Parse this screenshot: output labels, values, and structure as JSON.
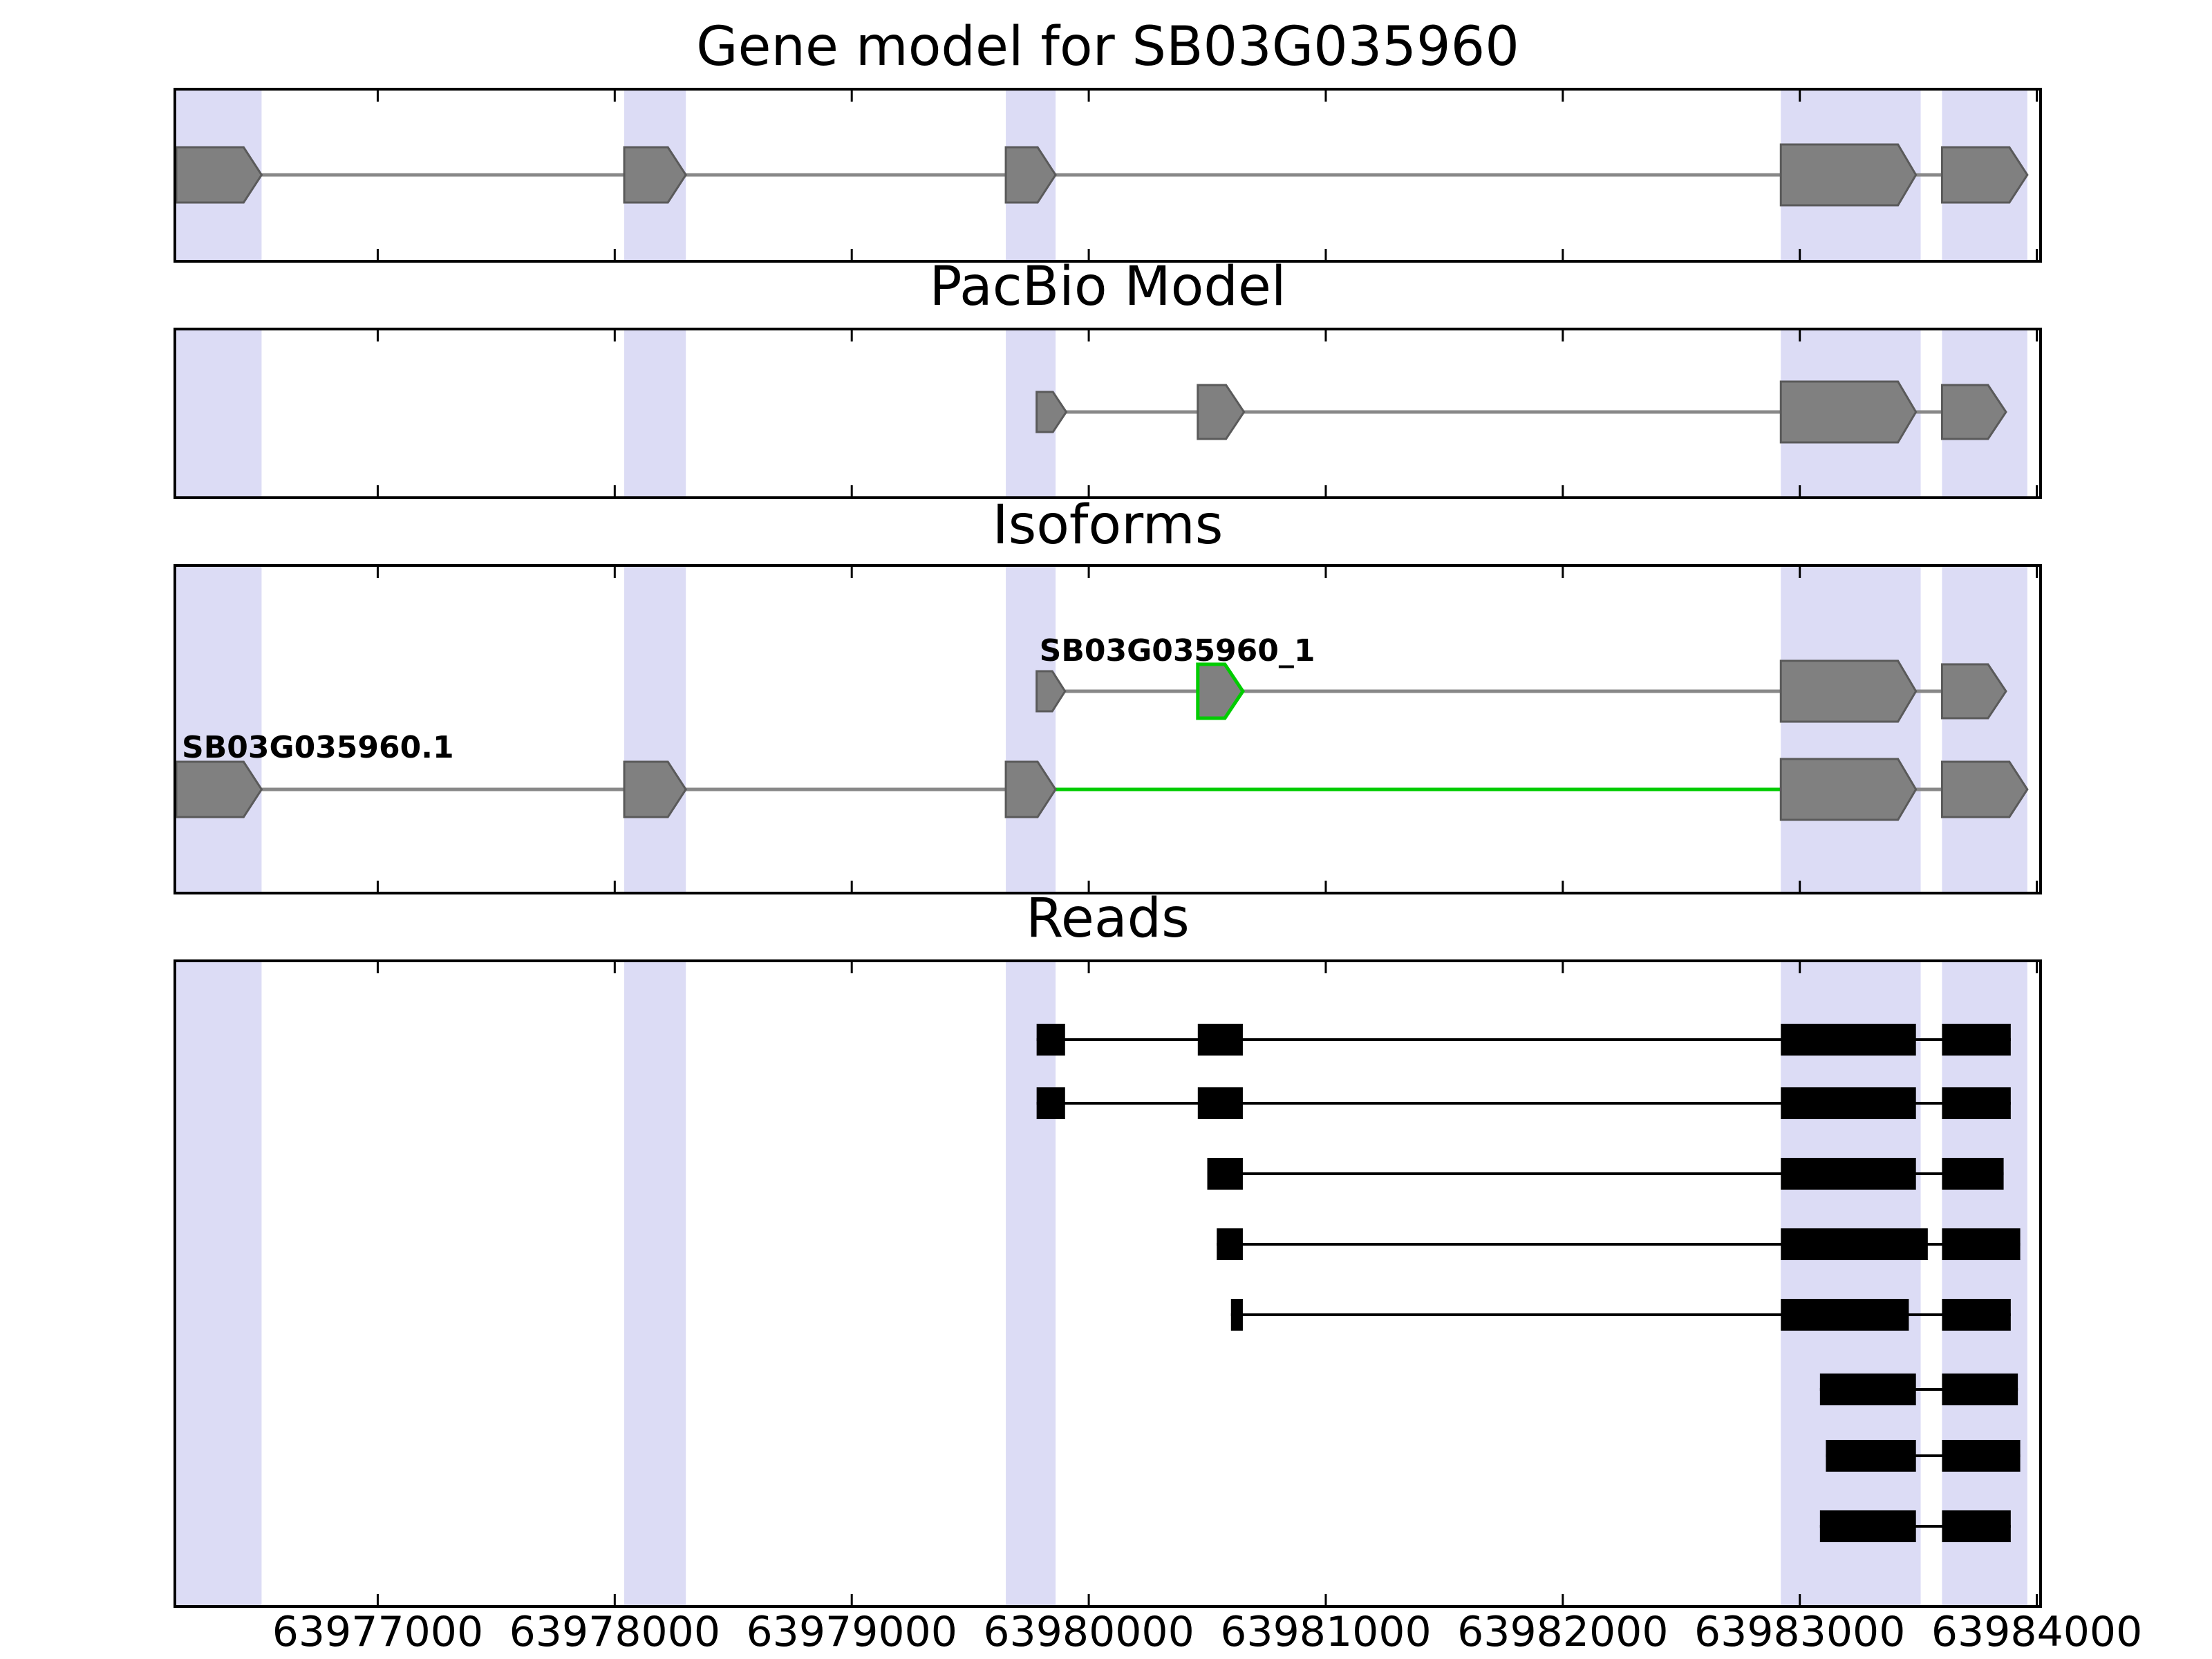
{
  "titles": {
    "gene_model": "Gene model for SB03G035960",
    "pacbio": "PacBio Model",
    "isoforms": "Isoforms",
    "reads": "Reads"
  },
  "colors": {
    "exon_fill": "#808080",
    "exon_stroke": "#5a5a5a",
    "intron_gray": "#888888",
    "accent_green": "#00cc00",
    "highlight_band": "#dcdcf5",
    "read_black": "#000000",
    "panel_border": "#000000"
  },
  "chart_data": {
    "type": "genome-browser",
    "coordinate_unit": "bp",
    "xlim": [
      63976150,
      63984010
    ],
    "xticks": [
      63977000,
      63978000,
      63979000,
      63980000,
      63981000,
      63982000,
      63983000,
      63984000
    ],
    "xtick_labels": [
      "63977000",
      "63978000",
      "63979000",
      "63980000",
      "63981000",
      "63982000",
      "63983000",
      "63984000"
    ],
    "highlight_regions": [
      [
        63976150,
        63976510
      ],
      [
        63978040,
        63978300
      ],
      [
        63979650,
        63979860
      ],
      [
        63982920,
        63983510
      ],
      [
        63983600,
        63983960
      ]
    ],
    "tracks": [
      {
        "title": "Gene model for SB03G035960",
        "rows": [
          {
            "label": "",
            "exons": [
              {
                "s": 63976150,
                "e": 63976510,
                "h": 80,
                "stroke": "gray"
              },
              {
                "s": 63978040,
                "e": 63978300,
                "h": 80,
                "stroke": "gray"
              },
              {
                "s": 63979650,
                "e": 63979860,
                "h": 80,
                "stroke": "gray"
              },
              {
                "s": 63982920,
                "e": 63983490,
                "h": 88,
                "stroke": "gray"
              },
              {
                "s": 63983600,
                "e": 63983960,
                "h": 80,
                "stroke": "gray"
              }
            ],
            "introns": [
              {
                "s": 63976510,
                "e": 63978040,
                "color": "gray"
              },
              {
                "s": 63978300,
                "e": 63979650,
                "color": "gray"
              },
              {
                "s": 63979860,
                "e": 63982920,
                "color": "gray"
              },
              {
                "s": 63983490,
                "e": 63983600,
                "color": "gray"
              }
            ]
          }
        ]
      },
      {
        "title": "PacBio Model",
        "rows": [
          {
            "label": "",
            "exons": [
              {
                "s": 63979780,
                "e": 63979905,
                "h": 58,
                "stroke": "gray"
              },
              {
                "s": 63980460,
                "e": 63980655,
                "h": 78,
                "stroke": "gray"
              },
              {
                "s": 63982920,
                "e": 63983490,
                "h": 88,
                "stroke": "gray"
              },
              {
                "s": 63983600,
                "e": 63983870,
                "h": 78,
                "stroke": "gray"
              }
            ],
            "introns": [
              {
                "s": 63979905,
                "e": 63980460,
                "color": "gray"
              },
              {
                "s": 63980655,
                "e": 63982920,
                "color": "gray"
              },
              {
                "s": 63983490,
                "e": 63983600,
                "color": "gray"
              }
            ]
          }
        ]
      },
      {
        "title": "Isoforms",
        "rows": [
          {
            "label": "SB03G035960_1",
            "exons": [
              {
                "s": 63979780,
                "e": 63979900,
                "h": 58,
                "stroke": "gray"
              },
              {
                "s": 63980460,
                "e": 63980650,
                "h": 78,
                "stroke": "green"
              },
              {
                "s": 63982920,
                "e": 63983490,
                "h": 88,
                "stroke": "gray"
              },
              {
                "s": 63983600,
                "e": 63983870,
                "h": 78,
                "stroke": "gray"
              }
            ],
            "introns": [
              {
                "s": 63979900,
                "e": 63980460,
                "color": "gray"
              },
              {
                "s": 63980650,
                "e": 63982920,
                "color": "gray"
              },
              {
                "s": 63983490,
                "e": 63983600,
                "color": "gray"
              }
            ]
          },
          {
            "label": "SB03G035960.1",
            "exons": [
              {
                "s": 63976150,
                "e": 63976510,
                "h": 80,
                "stroke": "gray"
              },
              {
                "s": 63978040,
                "e": 63978300,
                "h": 80,
                "stroke": "gray"
              },
              {
                "s": 63979650,
                "e": 63979860,
                "h": 80,
                "stroke": "gray"
              },
              {
                "s": 63982920,
                "e": 63983490,
                "h": 88,
                "stroke": "gray"
              },
              {
                "s": 63983600,
                "e": 63983960,
                "h": 80,
                "stroke": "gray"
              }
            ],
            "introns": [
              {
                "s": 63976510,
                "e": 63978040,
                "color": "gray"
              },
              {
                "s": 63978300,
                "e": 63979650,
                "color": "gray"
              },
              {
                "s": 63979860,
                "e": 63982920,
                "color": "green"
              },
              {
                "s": 63983490,
                "e": 63983600,
                "color": "gray"
              }
            ]
          }
        ]
      },
      {
        "title": "Reads",
        "rows": [
          {
            "blocks": [
              [
                63979780,
                63979900
              ],
              [
                63980460,
                63980650
              ],
              [
                63982920,
                63983490
              ],
              [
                63983600,
                63983890
              ]
            ]
          },
          {
            "blocks": [
              [
                63979780,
                63979900
              ],
              [
                63980460,
                63980650
              ],
              [
                63982920,
                63983490
              ],
              [
                63983600,
                63983890
              ]
            ]
          },
          {
            "blocks": [
              [
                63980500,
                63980650
              ],
              [
                63982920,
                63983490
              ],
              [
                63983600,
                63983860
              ]
            ]
          },
          {
            "blocks": [
              [
                63980540,
                63980650
              ],
              [
                63982920,
                63983540
              ],
              [
                63983600,
                63983930
              ]
            ]
          },
          {
            "blocks": [
              [
                63980600,
                63980650
              ],
              [
                63982920,
                63983460
              ],
              [
                63983600,
                63983890
              ]
            ]
          },
          {
            "blocks": [
              [
                63983085,
                63983490
              ],
              [
                63983600,
                63983920
              ]
            ]
          },
          {
            "blocks": [
              [
                63983110,
                63983490
              ],
              [
                63983600,
                63983930
              ]
            ]
          },
          {
            "blocks": [
              [
                63983085,
                63983490
              ],
              [
                63983600,
                63983890
              ]
            ]
          }
        ]
      }
    ]
  }
}
